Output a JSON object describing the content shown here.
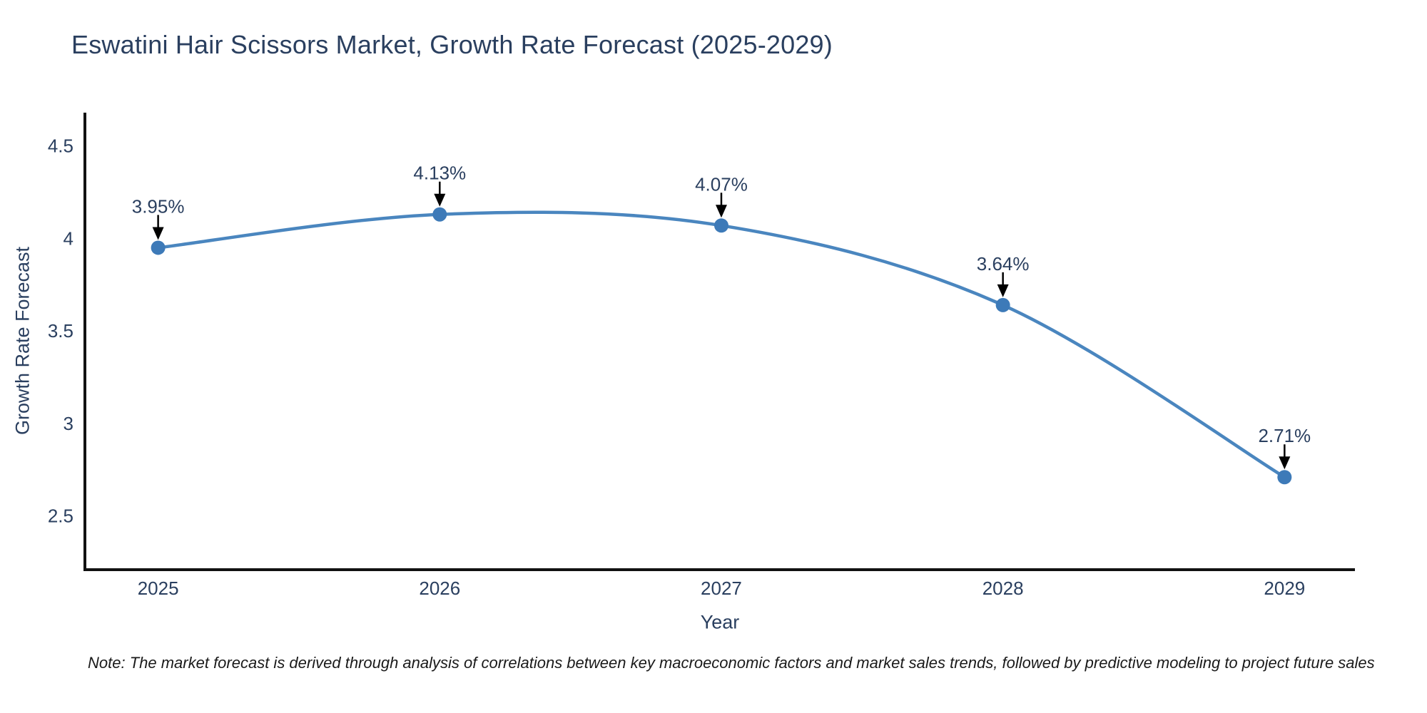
{
  "title": "Eswatini Hair Scissors Market, Growth Rate Forecast (2025-2029)",
  "note": "Note: The market forecast is derived through analysis of correlations between key macroeconomic factors and market sales trends, followed by predictive modeling to project future sales",
  "chart_data": {
    "type": "line",
    "title": "Eswatini Hair Scissors Market, Growth Rate Forecast (2025-2029)",
    "xlabel": "Year",
    "ylabel": "Growth Rate Forecast",
    "x": [
      2025,
      2026,
      2027,
      2028,
      2029
    ],
    "values": [
      3.95,
      4.13,
      4.07,
      3.64,
      2.71
    ],
    "point_labels": [
      "3.95%",
      "4.13%",
      "4.07%",
      "3.64%",
      "2.71%"
    ],
    "xticks": [
      "2025",
      "2026",
      "2027",
      "2028",
      "2029"
    ],
    "yticks": [
      2.5,
      3,
      3.5,
      4,
      4.5
    ],
    "ytick_labels": [
      "2.5",
      "3",
      "3.5",
      "4",
      "4.5"
    ],
    "xlim": [
      2024.74,
      2029.25
    ],
    "ylim": [
      2.21,
      4.68
    ],
    "grid": false,
    "legend": false,
    "line_shape": "spline",
    "colors": {
      "line": "#4a86bf",
      "marker": "#3d7ab8",
      "axis": "#111111",
      "tick_text": "#2a3f5f",
      "annotation_text": "#2a3f5f",
      "annotation_arrow": "#000000",
      "background": "#ffffff"
    }
  }
}
